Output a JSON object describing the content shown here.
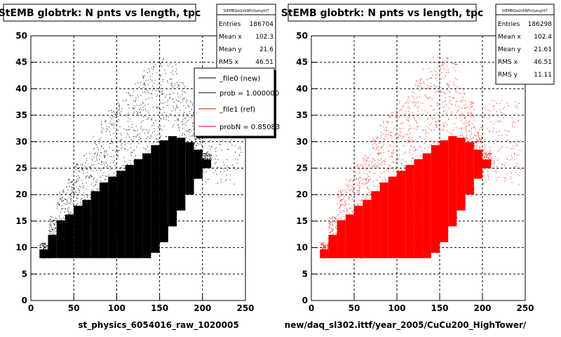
{
  "chart_data": [
    {
      "type": "scatter",
      "title": "StEMB globtrk: N pnts vs length, tpc",
      "xlabel": "st_physics_6054016_raw_1020005",
      "ylabel": "",
      "xlim": [
        0,
        250
      ],
      "ylim": [
        0,
        50
      ],
      "xticks": [
        "0",
        "50",
        "100",
        "150",
        "200",
        "250"
      ],
      "yticks": [
        "0",
        "5",
        "10",
        "15",
        "20",
        "25",
        "30",
        "35",
        "40",
        "45",
        "50"
      ],
      "grid": true,
      "color": "#000000",
      "stats": {
        "name": "StEMBQaGlrkNPntLenghtT",
        "rows": [
          {
            "label": "Entries",
            "value": "186704"
          },
          {
            "label": "Mean x",
            "value": "102.3"
          },
          {
            "label": "Mean y",
            "value": "21.6"
          },
          {
            "label": "RMS x",
            "value": "46.51"
          }
        ]
      },
      "legend": {
        "placement": "top-right",
        "entries": [
          {
            "label": "_file0 (new)",
            "color": "#000000"
          },
          {
            "label": "prob = 1.000000",
            "color": "#000000"
          },
          {
            "label": "_file1 (ref)",
            "color": "#ff0000"
          },
          {
            "label": "probN = 0.85083",
            "color": "#ff0000"
          }
        ]
      },
      "density_profile": [
        {
          "x": 10,
          "ymin": 8,
          "ymax": 11
        },
        {
          "x": 20,
          "ymin": 8,
          "ymax": 16
        },
        {
          "x": 30,
          "ymin": 8,
          "ymax": 21
        },
        {
          "x": 40,
          "ymin": 8,
          "ymax": 23
        },
        {
          "x": 50,
          "ymin": 8,
          "ymax": 26
        },
        {
          "x": 60,
          "ymin": 8,
          "ymax": 28
        },
        {
          "x": 70,
          "ymin": 8,
          "ymax": 31
        },
        {
          "x": 80,
          "ymin": 8,
          "ymax": 34
        },
        {
          "x": 90,
          "ymin": 8,
          "ymax": 36
        },
        {
          "x": 100,
          "ymin": 8,
          "ymax": 38
        },
        {
          "x": 110,
          "ymin": 8,
          "ymax": 40
        },
        {
          "x": 120,
          "ymin": 8,
          "ymax": 42
        },
        {
          "x": 130,
          "ymin": 8,
          "ymax": 44
        },
        {
          "x": 140,
          "ymin": 9,
          "ymax": 46
        },
        {
          "x": 150,
          "ymin": 11,
          "ymax": 46
        },
        {
          "x": 160,
          "ymin": 14,
          "ymax": 45
        },
        {
          "x": 170,
          "ymin": 17,
          "ymax": 42
        },
        {
          "x": 180,
          "ymin": 20,
          "ymax": 38
        },
        {
          "x": 190,
          "ymin": 23,
          "ymax": 33
        },
        {
          "x": 200,
          "ymin": 25,
          "ymax": 28
        }
      ]
    },
    {
      "type": "scatter",
      "title": "StEMB globtrk: N pnts vs length, tpc",
      "xlabel": "new/daq_sl302.ittf/year_2005/CuCu200_HighTower/",
      "ylabel": "",
      "xlim": [
        0,
        250
      ],
      "ylim": [
        0,
        50
      ],
      "xticks": [
        "0",
        "50",
        "100",
        "150",
        "200",
        "250"
      ],
      "yticks": [
        "0",
        "5",
        "10",
        "15",
        "20",
        "25",
        "30",
        "35",
        "40",
        "45",
        "50"
      ],
      "grid": true,
      "color": "#ff0000",
      "stats": {
        "name": "StEMBQaGlrkNPntLenghtT",
        "rows": [
          {
            "label": "Entries",
            "value": "186298"
          },
          {
            "label": "Mean x",
            "value": "102.4"
          },
          {
            "label": "Mean y",
            "value": "21.61"
          },
          {
            "label": "RMS x",
            "value": "46.51"
          },
          {
            "label": "RMS y",
            "value": "11.11"
          }
        ]
      },
      "density_profile": [
        {
          "x": 10,
          "ymin": 8,
          "ymax": 11
        },
        {
          "x": 20,
          "ymin": 8,
          "ymax": 16
        },
        {
          "x": 30,
          "ymin": 8,
          "ymax": 21
        },
        {
          "x": 40,
          "ymin": 8,
          "ymax": 23
        },
        {
          "x": 50,
          "ymin": 8,
          "ymax": 26
        },
        {
          "x": 60,
          "ymin": 8,
          "ymax": 28
        },
        {
          "x": 70,
          "ymin": 8,
          "ymax": 31
        },
        {
          "x": 80,
          "ymin": 8,
          "ymax": 34
        },
        {
          "x": 90,
          "ymin": 8,
          "ymax": 36
        },
        {
          "x": 100,
          "ymin": 8,
          "ymax": 38
        },
        {
          "x": 110,
          "ymin": 8,
          "ymax": 40
        },
        {
          "x": 120,
          "ymin": 8,
          "ymax": 42
        },
        {
          "x": 130,
          "ymin": 8,
          "ymax": 44
        },
        {
          "x": 140,
          "ymin": 9,
          "ymax": 46
        },
        {
          "x": 150,
          "ymin": 11,
          "ymax": 46
        },
        {
          "x": 160,
          "ymin": 14,
          "ymax": 45
        },
        {
          "x": 170,
          "ymin": 17,
          "ymax": 42
        },
        {
          "x": 180,
          "ymin": 20,
          "ymax": 38
        },
        {
          "x": 190,
          "ymin": 23,
          "ymax": 33
        },
        {
          "x": 200,
          "ymin": 25,
          "ymax": 28
        }
      ]
    }
  ]
}
